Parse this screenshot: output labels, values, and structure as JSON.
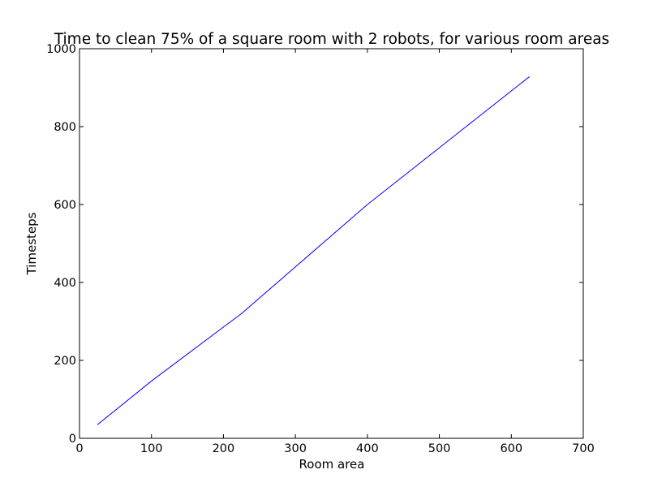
{
  "chart_data": {
    "type": "line",
    "title": "Time to clean 75% of a square room with 2 robots, for various room areas",
    "xlabel": "Room area",
    "ylabel": "Timesteps",
    "xlim": [
      0,
      700
    ],
    "ylim": [
      0,
      1000
    ],
    "xticks": [
      0,
      100,
      200,
      300,
      400,
      500,
      600,
      700
    ],
    "yticks": [
      0,
      200,
      400,
      600,
      800,
      1000
    ],
    "grid": false,
    "series": [
      {
        "color": "#0000ff",
        "x": [
          25,
          100,
          225,
          400,
          625
        ],
        "y": [
          35,
          147,
          320,
          600,
          928
        ]
      }
    ]
  }
}
